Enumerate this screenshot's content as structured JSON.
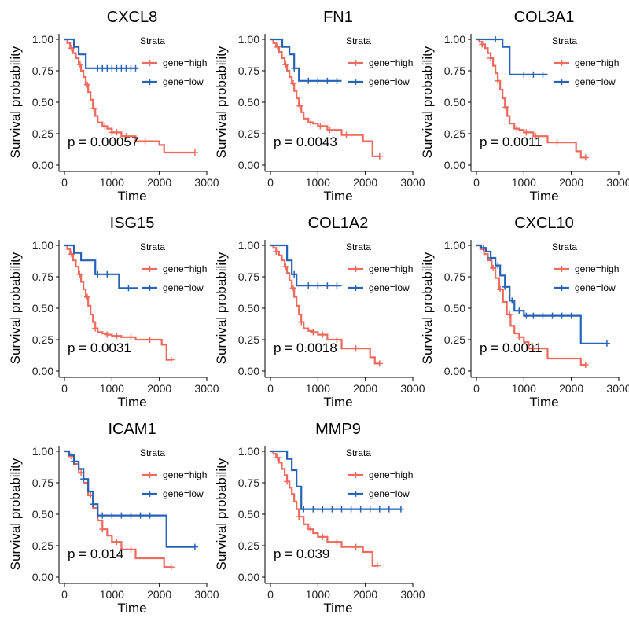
{
  "figure": {
    "x_label": "Time",
    "y_label": "Survival probability",
    "legend_title": "Strata",
    "legend_labels": [
      "gene=high",
      "gene=low"
    ]
  },
  "colors": {
    "high": "#EE6A5D",
    "low": "#2663B6",
    "axis": "#000000"
  },
  "chart_data": [
    {
      "type": "line",
      "title": "CXCL8",
      "p_value": "p = 0.00057",
      "xlabel": "Time",
      "ylabel": "Survival probability",
      "xlim": [
        0,
        3000
      ],
      "ylim": [
        0,
        1
      ],
      "xticks": [
        "0",
        "1000",
        "2000",
        "3000"
      ],
      "yticks": [
        "0.00",
        "0.25",
        "0.50",
        "0.75",
        "1.00"
      ],
      "legend": {
        "title": "Strata",
        "entries": [
          "gene=high",
          "gene=low"
        ],
        "position": "top-right"
      },
      "series": [
        {
          "name": "gene=high",
          "x": [
            0,
            60,
            120,
            180,
            240,
            300,
            350,
            400,
            450,
            500,
            550,
            600,
            650,
            700,
            800,
            900,
            1000,
            1200,
            1500,
            2000,
            2100,
            2750
          ],
          "values": [
            1.0,
            0.97,
            0.93,
            0.89,
            0.85,
            0.8,
            0.75,
            0.7,
            0.64,
            0.58,
            0.52,
            0.45,
            0.39,
            0.34,
            0.31,
            0.29,
            0.26,
            0.23,
            0.19,
            0.16,
            0.1,
            0.1
          ],
          "censor_x": [
            150,
            330,
            480,
            620,
            850,
            1000,
            1100,
            1300,
            1700,
            2750
          ]
        },
        {
          "name": "gene=low",
          "x": [
            0,
            200,
            300,
            450,
            1550
          ],
          "values": [
            1.0,
            0.94,
            0.88,
            0.77,
            0.77
          ],
          "censor_x": [
            700,
            800,
            900,
            1000,
            1100,
            1200,
            1300,
            1400,
            1500
          ]
        }
      ]
    },
    {
      "type": "line",
      "title": "FN1",
      "p_value": "p = 0.0043",
      "xlabel": "Time",
      "ylabel": "Survival probability",
      "xlim": [
        0,
        3000
      ],
      "ylim": [
        0,
        1
      ],
      "xticks": [
        "0",
        "1000",
        "2000",
        "3000"
      ],
      "yticks": [
        "0.00",
        "0.25",
        "0.50",
        "0.75",
        "1.00"
      ],
      "legend": {
        "title": "Strata",
        "entries": [
          "gene=high",
          "gene=low"
        ],
        "position": "top-right"
      },
      "series": [
        {
          "name": "gene=high",
          "x": [
            0,
            60,
            120,
            180,
            240,
            300,
            350,
            400,
            450,
            500,
            550,
            600,
            650,
            700,
            800,
            900,
            1000,
            1200,
            1500,
            1950,
            2150,
            2300
          ],
          "values": [
            1.0,
            0.97,
            0.94,
            0.9,
            0.85,
            0.8,
            0.75,
            0.7,
            0.65,
            0.59,
            0.53,
            0.47,
            0.42,
            0.37,
            0.34,
            0.33,
            0.31,
            0.28,
            0.24,
            0.19,
            0.07,
            0.07
          ],
          "censor_x": [
            150,
            320,
            480,
            620,
            850,
            1050,
            1250,
            1600,
            2300
          ]
        },
        {
          "name": "gene=low",
          "x": [
            0,
            250,
            400,
            500,
            600,
            1500
          ],
          "values": [
            1.0,
            0.94,
            0.88,
            0.77,
            0.67,
            0.67
          ],
          "censor_x": [
            500,
            800,
            1000,
            1200,
            1400
          ]
        }
      ]
    },
    {
      "type": "line",
      "title": "COL3A1",
      "p_value": "p = 0.0011",
      "xlabel": "Time",
      "ylabel": "Survival probability",
      "xlim": [
        0,
        3000
      ],
      "ylim": [
        0,
        1
      ],
      "xticks": [
        "0",
        "1000",
        "2000",
        "3000"
      ],
      "yticks": [
        "0.00",
        "0.25",
        "0.50",
        "0.75",
        "1.00"
      ],
      "legend": {
        "title": "Strata",
        "entries": [
          "gene=high",
          "gene=low"
        ],
        "position": "top-right"
      },
      "series": [
        {
          "name": "gene=high",
          "x": [
            0,
            60,
            120,
            180,
            240,
            300,
            350,
            400,
            450,
            500,
            550,
            600,
            650,
            700,
            800,
            900,
            1000,
            1200,
            1500,
            2100,
            2200,
            2300
          ],
          "values": [
            1.0,
            0.98,
            0.96,
            0.93,
            0.89,
            0.85,
            0.79,
            0.73,
            0.67,
            0.6,
            0.53,
            0.46,
            0.39,
            0.33,
            0.29,
            0.28,
            0.26,
            0.23,
            0.18,
            0.11,
            0.06,
            0.06
          ],
          "censor_x": [
            120,
            300,
            450,
            620,
            850,
            1050,
            1250,
            1700,
            2300
          ]
        },
        {
          "name": "gene=low",
          "x": [
            0,
            550,
            700,
            1500
          ],
          "values": [
            1.0,
            0.94,
            0.72,
            0.72
          ],
          "censor_x": [
            400,
            1000,
            1200,
            1400
          ]
        }
      ]
    },
    {
      "type": "line",
      "title": "ISG15",
      "p_value": "p = 0.0031",
      "xlabel": "Time",
      "ylabel": "Survival probability",
      "xlim": [
        0,
        3000
      ],
      "ylim": [
        0,
        1
      ],
      "xticks": [
        "0",
        "1000",
        "2000",
        "3000"
      ],
      "yticks": [
        "0.00",
        "0.25",
        "0.50",
        "0.75",
        "1.00"
      ],
      "legend": {
        "title": "Strata",
        "entries": [
          "gene=high",
          "gene=low"
        ],
        "position": "top-right"
      },
      "series": [
        {
          "name": "gene=high",
          "x": [
            0,
            60,
            120,
            180,
            240,
            300,
            350,
            400,
            450,
            500,
            550,
            600,
            650,
            700,
            800,
            900,
            1000,
            1200,
            1500,
            2050,
            2150,
            2250
          ],
          "values": [
            1.0,
            0.97,
            0.93,
            0.88,
            0.83,
            0.77,
            0.71,
            0.65,
            0.59,
            0.52,
            0.45,
            0.39,
            0.34,
            0.31,
            0.3,
            0.29,
            0.28,
            0.27,
            0.25,
            0.21,
            0.09,
            0.09
          ],
          "censor_x": [
            150,
            320,
            480,
            650,
            900,
            1100,
            1400,
            1800,
            2250
          ]
        },
        {
          "name": "gene=low",
          "x": [
            0,
            200,
            350,
            650,
            1150,
            1550
          ],
          "values": [
            1.0,
            0.94,
            0.88,
            0.77,
            0.66,
            0.66
          ],
          "censor_x": [
            700,
            900,
            1350
          ]
        }
      ]
    },
    {
      "type": "line",
      "title": "COL1A2",
      "p_value": "p = 0.0018",
      "xlabel": "Time",
      "ylabel": "Survival probability",
      "xlim": [
        0,
        3000
      ],
      "ylim": [
        0,
        1
      ],
      "xticks": [
        "0",
        "1000",
        "2000",
        "3000"
      ],
      "yticks": [
        "0.00",
        "0.25",
        "0.50",
        "0.75",
        "1.00"
      ],
      "legend": {
        "title": "Strata",
        "entries": [
          "gene=high",
          "gene=low"
        ],
        "position": "top-right"
      },
      "series": [
        {
          "name": "gene=high",
          "x": [
            0,
            60,
            120,
            180,
            240,
            300,
            350,
            400,
            450,
            500,
            550,
            600,
            650,
            700,
            800,
            900,
            1000,
            1200,
            1500,
            2100,
            2200,
            2300
          ],
          "values": [
            1.0,
            0.98,
            0.95,
            0.92,
            0.88,
            0.83,
            0.78,
            0.72,
            0.66,
            0.59,
            0.52,
            0.45,
            0.39,
            0.34,
            0.32,
            0.31,
            0.29,
            0.25,
            0.18,
            0.11,
            0.06,
            0.06
          ],
          "censor_x": [
            120,
            320,
            480,
            650,
            900,
            1100,
            1400,
            1800,
            2300
          ]
        },
        {
          "name": "gene=low",
          "x": [
            0,
            350,
            450,
            550,
            1500
          ],
          "values": [
            1.0,
            0.88,
            0.77,
            0.68,
            0.68
          ],
          "censor_x": [
            500,
            800,
            1000,
            1200,
            1400
          ]
        }
      ]
    },
    {
      "type": "line",
      "title": "CXCL10",
      "p_value": "p = 0.0011",
      "xlabel": "Time",
      "ylabel": "Survival probability",
      "xlim": [
        0,
        3000
      ],
      "ylim": [
        0,
        1
      ],
      "xticks": [
        "0",
        "1000",
        "2000",
        "3000"
      ],
      "yticks": [
        "0.00",
        "0.25",
        "0.50",
        "0.75",
        "1.00"
      ],
      "legend": {
        "title": "Strata",
        "entries": [
          "gene=high",
          "gene=low"
        ],
        "position": "top-right"
      },
      "series": [
        {
          "name": "gene=high",
          "x": [
            0,
            80,
            160,
            240,
            320,
            400,
            480,
            560,
            640,
            720,
            800,
            900,
            1000,
            1100,
            1500,
            2200,
            2300
          ],
          "values": [
            1.0,
            0.97,
            0.93,
            0.88,
            0.82,
            0.74,
            0.65,
            0.55,
            0.45,
            0.36,
            0.3,
            0.27,
            0.23,
            0.18,
            0.1,
            0.05,
            0.05
          ],
          "censor_x": [
            150,
            350,
            500,
            700,
            900,
            1200,
            2300
          ]
        },
        {
          "name": "gene=low",
          "x": [
            0,
            100,
            200,
            300,
            400,
            500,
            600,
            700,
            800,
            1000,
            2200,
            2750
          ],
          "values": [
            1.0,
            0.98,
            0.95,
            0.9,
            0.84,
            0.76,
            0.67,
            0.56,
            0.48,
            0.44,
            0.22,
            0.22
          ],
          "censor_x": [
            150,
            300,
            450,
            600,
            750,
            900,
            1050,
            1200,
            1400,
            1600,
            1800,
            2000,
            2750
          ]
        }
      ]
    },
    {
      "type": "line",
      "title": "ICAM1",
      "p_value": "p = 0.014",
      "xlabel": "Time",
      "ylabel": "Survival probability",
      "xlim": [
        0,
        3000
      ],
      "ylim": [
        0,
        1
      ],
      "xticks": [
        "0",
        "1000",
        "2000",
        "3000"
      ],
      "yticks": [
        "0.00",
        "0.25",
        "0.50",
        "0.75",
        "1.00"
      ],
      "legend": {
        "title": "Strata",
        "entries": [
          "gene=high",
          "gene=low"
        ],
        "position": "top-right"
      },
      "series": [
        {
          "name": "gene=high",
          "x": [
            0,
            100,
            200,
            300,
            400,
            500,
            600,
            700,
            800,
            900,
            1000,
            1200,
            1500,
            2100,
            2250
          ],
          "values": [
            1.0,
            0.96,
            0.9,
            0.83,
            0.75,
            0.65,
            0.55,
            0.45,
            0.38,
            0.33,
            0.28,
            0.22,
            0.15,
            0.08,
            0.08
          ],
          "censor_x": [
            150,
            350,
            550,
            800,
            1100,
            1400,
            2250
          ]
        },
        {
          "name": "gene=low",
          "x": [
            0,
            100,
            200,
            300,
            400,
            500,
            600,
            700,
            2150,
            2750
          ],
          "values": [
            1.0,
            0.97,
            0.92,
            0.86,
            0.78,
            0.68,
            0.58,
            0.49,
            0.24,
            0.24
          ],
          "censor_x": [
            200,
            400,
            600,
            800,
            1000,
            1200,
            1400,
            1600,
            1800,
            2750
          ]
        }
      ]
    },
    {
      "type": "line",
      "title": "MMP9",
      "p_value": "p = 0.039",
      "xlabel": "Time",
      "ylabel": "Survival probability",
      "xlim": [
        0,
        3000
      ],
      "ylim": [
        0,
        1
      ],
      "xticks": [
        "0",
        "1000",
        "2000",
        "3000"
      ],
      "yticks": [
        "0.00",
        "0.25",
        "0.50",
        "0.75",
        "1.00"
      ],
      "legend": {
        "title": "Strata",
        "entries": [
          "gene=high",
          "gene=low"
        ],
        "position": "top-right"
      },
      "series": [
        {
          "name": "gene=high",
          "x": [
            0,
            60,
            120,
            180,
            240,
            300,
            350,
            400,
            450,
            500,
            550,
            600,
            700,
            800,
            900,
            1000,
            1200,
            1500,
            1950,
            2150,
            2250
          ],
          "values": [
            1.0,
            0.98,
            0.95,
            0.91,
            0.86,
            0.81,
            0.76,
            0.71,
            0.66,
            0.6,
            0.54,
            0.48,
            0.42,
            0.38,
            0.35,
            0.32,
            0.28,
            0.24,
            0.2,
            0.09,
            0.09
          ],
          "censor_x": [
            150,
            350,
            600,
            850,
            1100,
            1400,
            1800,
            2250
          ]
        },
        {
          "name": "gene=low",
          "x": [
            0,
            350,
            450,
            550,
            650,
            2750
          ],
          "values": [
            1.0,
            0.94,
            0.85,
            0.72,
            0.54,
            0.54
          ],
          "censor_x": [
            700,
            900,
            1100,
            1300,
            1500,
            1700,
            1900,
            2100,
            2300,
            2500,
            2750
          ]
        }
      ]
    }
  ]
}
